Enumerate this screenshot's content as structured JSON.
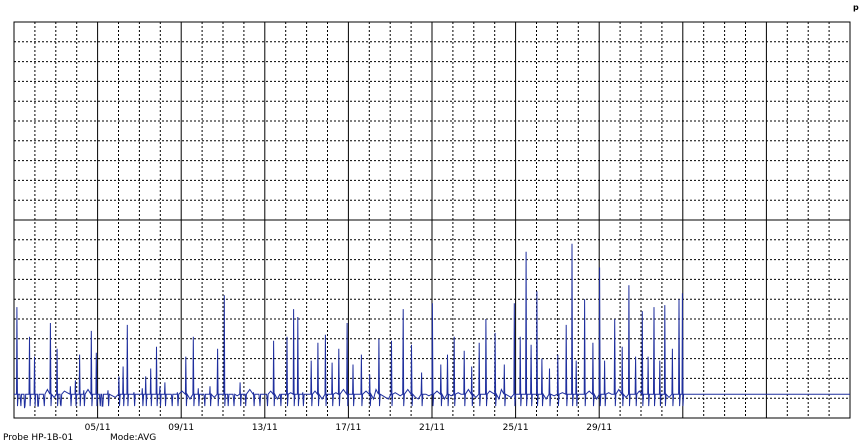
{
  "corner_mark": "p",
  "footer": {
    "probe": "Probe HP-1B-01",
    "mode": "Mode:AVG"
  },
  "chart_data": {
    "type": "line",
    "title": "",
    "xlabel": "",
    "ylabel": "",
    "grid": true,
    "line_color": "#1f2f9e",
    "xlim": [
      0,
      10
    ],
    "ylim": [
      0,
      20
    ],
    "x_tick_labels": [
      {
        "x": 1,
        "label": "05/11"
      },
      {
        "x": 2,
        "label": "09/11"
      },
      {
        "x": 3,
        "label": "13/11"
      },
      {
        "x": 4,
        "label": "17/11"
      },
      {
        "x": 5,
        "label": "21/11"
      },
      {
        "x": 6,
        "label": "25/11"
      },
      {
        "x": 7,
        "label": "29/11"
      }
    ],
    "baseline": 1.2,
    "series": [
      {
        "values_note_is_absent": null,
        "spikes": [
          [
            0.03,
            5.6
          ],
          [
            0.07,
            1.0
          ],
          [
            0.12,
            0.5
          ],
          [
            0.18,
            4.1
          ],
          [
            0.24,
            3.1
          ],
          [
            0.28,
            0.6
          ],
          [
            0.35,
            1.0
          ],
          [
            0.43,
            4.8
          ],
          [
            0.51,
            3.5
          ],
          [
            0.55,
            0.7
          ],
          [
            0.67,
            1.6
          ],
          [
            0.73,
            1.9
          ],
          [
            0.78,
            3.2
          ],
          [
            0.83,
            1.4
          ],
          [
            0.92,
            4.4
          ],
          [
            0.98,
            3.3
          ],
          [
            1.02,
            1.0
          ],
          [
            1.05,
            0.6
          ],
          [
            1.12,
            1.4
          ],
          [
            1.25,
            2.1
          ],
          [
            1.3,
            2.6
          ],
          [
            1.35,
            4.7
          ],
          [
            1.43,
            1.3
          ],
          [
            1.53,
            1.5
          ],
          [
            1.57,
            2.1
          ],
          [
            1.63,
            2.5
          ],
          [
            1.7,
            3.6
          ],
          [
            1.74,
            1.6
          ],
          [
            1.8,
            1.8
          ],
          [
            1.88,
            1.1
          ],
          [
            1.95,
            1.3
          ],
          [
            2.05,
            3.1
          ],
          [
            2.14,
            4.1
          ],
          [
            2.2,
            1.5
          ],
          [
            2.27,
            1.1
          ],
          [
            2.34,
            1.6
          ],
          [
            2.43,
            3.5
          ],
          [
            2.51,
            6.2
          ],
          [
            2.55,
            1.2
          ],
          [
            2.62,
            1.0
          ],
          [
            2.7,
            1.8
          ],
          [
            2.76,
            1.2
          ],
          [
            2.86,
            1.3
          ],
          [
            2.93,
            1.0
          ],
          [
            3.02,
            1.1
          ],
          [
            3.1,
            3.9
          ],
          [
            3.18,
            1.2
          ],
          [
            3.26,
            4.1
          ],
          [
            3.34,
            5.5
          ],
          [
            3.39,
            5.1
          ],
          [
            3.45,
            1.3
          ],
          [
            3.55,
            2.9
          ],
          [
            3.63,
            3.8
          ],
          [
            3.72,
            4.2
          ],
          [
            3.8,
            2.8
          ],
          [
            3.88,
            3.5
          ],
          [
            3.98,
            4.8
          ],
          [
            4.05,
            2.7
          ],
          [
            4.15,
            3.2
          ],
          [
            4.25,
            2.2
          ],
          [
            4.36,
            4.0
          ],
          [
            4.51,
            3.9
          ],
          [
            4.65,
            5.5
          ],
          [
            4.75,
            3.7
          ],
          [
            4.87,
            2.3
          ],
          [
            5.0,
            5.8
          ],
          [
            5.1,
            2.7
          ],
          [
            5.18,
            3.2
          ],
          [
            5.26,
            4.1
          ],
          [
            5.38,
            3.4
          ],
          [
            5.47,
            2.6
          ],
          [
            5.56,
            3.8
          ],
          [
            5.64,
            5.0
          ],
          [
            5.75,
            4.3
          ],
          [
            5.86,
            2.7
          ],
          [
            5.98,
            5.8
          ],
          [
            6.05,
            4.1
          ],
          [
            6.12,
            8.4
          ],
          [
            6.18,
            3.7
          ],
          [
            6.25,
            6.4
          ],
          [
            6.31,
            3.0
          ],
          [
            6.4,
            2.5
          ],
          [
            6.5,
            3.2
          ],
          [
            6.6,
            4.7
          ],
          [
            6.67,
            8.8
          ],
          [
            6.72,
            2.9
          ],
          [
            6.82,
            6.0
          ],
          [
            6.92,
            3.8
          ],
          [
            7.0,
            7.6
          ],
          [
            7.06,
            2.9
          ],
          [
            7.18,
            5.0
          ],
          [
            7.27,
            3.6
          ],
          [
            7.35,
            6.7
          ],
          [
            7.43,
            3.1
          ],
          [
            7.51,
            5.4
          ],
          [
            7.58,
            3.1
          ],
          [
            7.65,
            5.6
          ],
          [
            7.72,
            2.9
          ],
          [
            7.78,
            5.7
          ],
          [
            7.87,
            3.5
          ],
          [
            7.95,
            6.0
          ],
          [
            7.99,
            6.3
          ]
        ]
      }
    ]
  }
}
